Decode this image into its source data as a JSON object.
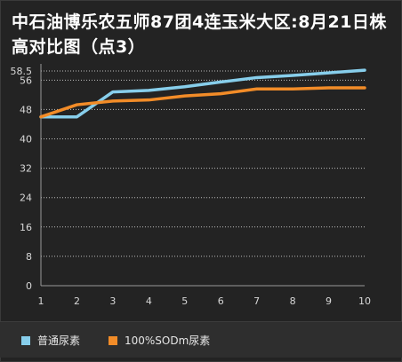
{
  "title": "中石油博乐农五师87团4连玉米大区:8月21日株高对比图（点3）",
  "chart_data": {
    "type": "line",
    "title": "中石油博乐农五师87团4连玉米大区:8月21日株高对比图（点3）",
    "x": [
      1,
      2,
      3,
      4,
      5,
      6,
      7,
      8,
      9,
      10
    ],
    "x_tick_labels": [
      "1",
      "2",
      "3",
      "4",
      "5",
      "6",
      "7",
      "8",
      "9",
      "10"
    ],
    "y_tick_labels": [
      "0",
      "8",
      "16",
      "24",
      "32",
      "40",
      "48",
      "56",
      "58.5"
    ],
    "y_ticks": [
      0,
      8,
      16,
      24,
      32,
      40,
      48,
      56,
      58.5
    ],
    "ylim": [
      0,
      58.5
    ],
    "xlim": [
      1,
      10
    ],
    "grid": true,
    "legend_position": "bottom",
    "series": [
      {
        "name": "普通尿素",
        "color": "#87ceeb",
        "values": [
          46.0,
          46.0,
          52.8,
          53.2,
          54.2,
          55.5,
          56.7,
          57.3,
          58.0,
          58.7
        ]
      },
      {
        "name": "100%SODm尿素",
        "color": "#f28c28",
        "values": [
          46.0,
          49.3,
          50.3,
          50.6,
          51.7,
          52.3,
          53.6,
          53.6,
          53.9,
          53.9
        ]
      }
    ]
  }
}
